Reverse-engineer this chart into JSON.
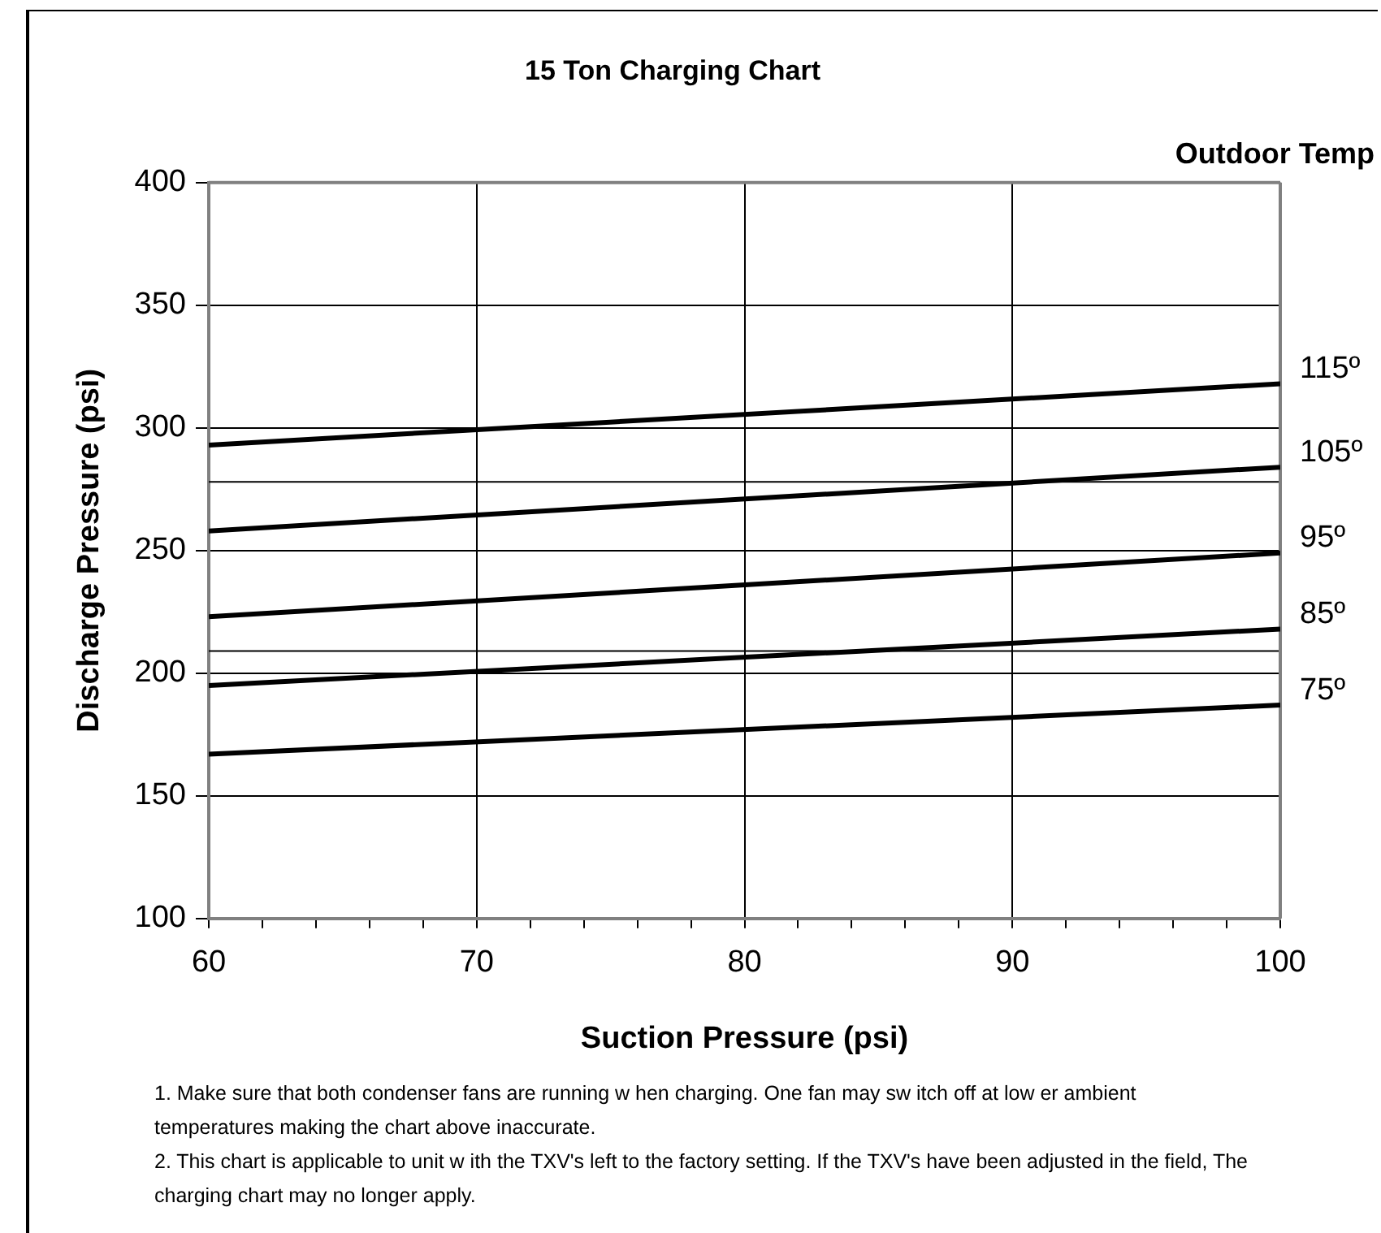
{
  "chart_data": {
    "type": "line",
    "title": "15 Ton Charging Chart",
    "legend_title": "Outdoor Temp",
    "xlabel": "Suction Pressure (psi)",
    "ylabel": "Discharge Pressure (psi)",
    "x": [
      60,
      100
    ],
    "series": [
      {
        "name": "115º",
        "color": "#000000",
        "values": [
          293,
          318
        ]
      },
      {
        "name": "105º",
        "color": "#000000",
        "values": [
          258,
          284
        ]
      },
      {
        "name": "95º",
        "color": "#000000",
        "values": [
          223,
          249
        ]
      },
      {
        "name": "85º",
        "color": "#000000",
        "values": [
          195,
          218
        ]
      },
      {
        "name": "75º",
        "color": "#000000",
        "values": [
          167,
          187
        ]
      }
    ],
    "xlim": [
      60,
      100
    ],
    "xticks": [
      60,
      {
        "value": 62,
        "label": null
      },
      {
        "value": 64,
        "label": null
      },
      {
        "value": 66,
        "label": null
      },
      {
        "value": 68,
        "label": null
      },
      70,
      {
        "value": 72,
        "label": null
      },
      {
        "value": 74,
        "label": null
      },
      {
        "value": 76,
        "label": null
      },
      {
        "value": 78,
        "label": null
      },
      80,
      {
        "value": 82,
        "label": null
      },
      {
        "value": 84,
        "label": null
      },
      {
        "value": 86,
        "label": null
      },
      {
        "value": 88,
        "label": null
      },
      90,
      {
        "value": 92,
        "label": null
      },
      {
        "value": 94,
        "label": null
      },
      {
        "value": 96,
        "label": null
      },
      {
        "value": 98,
        "label": null
      },
      100
    ],
    "ylim": [
      100,
      400
    ],
    "yticks": [
      100,
      150,
      200,
      250,
      300,
      350,
      400
    ],
    "ref_lines": [
      {
        "axis": "y",
        "value": 278,
        "color": "#000000"
      },
      {
        "axis": "y",
        "value": 209,
        "color": "#000000"
      }
    ],
    "grid": true,
    "legend": false,
    "marker": "none",
    "line_style": "solid",
    "annotations": [
      "1.  Make sure that both condenser fans are running w hen charging.  One fan may sw itch off at low er ambient temperatures making the chart above inaccurate.",
      "2.  This chart is applicable to unit w ith the TXV's left to the factory setting.  If the TXV's have been adjusted in the field, The charging chart may no longer apply."
    ]
  }
}
